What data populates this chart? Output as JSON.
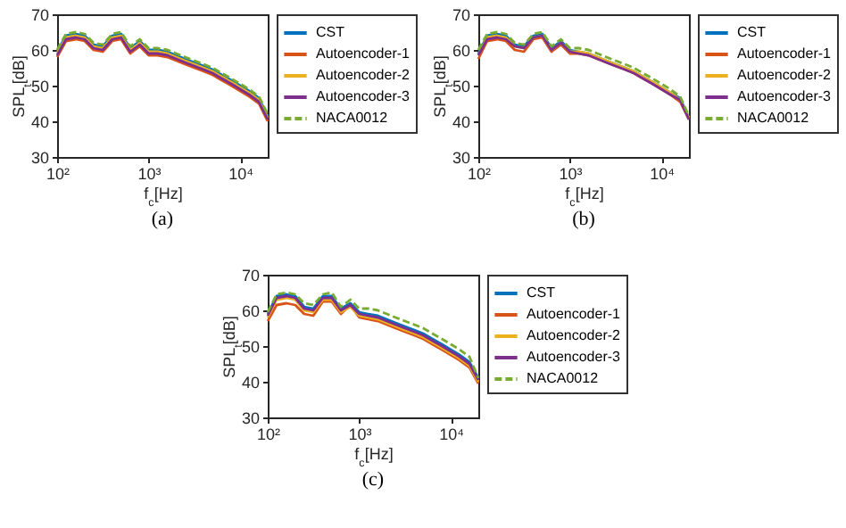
{
  "chart_data": [
    {
      "type": "line",
      "title": "(a)",
      "xlabel": "f$_{c}$[Hz]",
      "ylabel": "SPL$_{t}$[dB]",
      "log": "x",
      "legend": "right",
      "x": [
        100,
        125,
        160,
        200,
        250,
        315,
        400,
        500,
        630,
        800,
        1000,
        1250,
        1600,
        2000,
        2500,
        3150,
        4000,
        5000,
        6300,
        8000,
        10000,
        12500,
        16000,
        20000
      ],
      "xlim": [
        100,
        20000
      ],
      "xticks": [
        {
          "value": 100,
          "label": "10²"
        },
        {
          "value": 1000,
          "label": "10³"
        },
        {
          "value": 10000,
          "label": "10⁴"
        }
      ],
      "ylim": [
        30,
        70
      ],
      "yticks": [
        30,
        40,
        50,
        60,
        70
      ],
      "series": [
        {
          "name": "CST",
          "color": "#0072bd",
          "line_style": "solid",
          "values": [
            59.5,
            64,
            64.5,
            64,
            61.5,
            61,
            64,
            64.5,
            60.5,
            62.5,
            60,
            60,
            59.5,
            58.5,
            57.5,
            56.5,
            55.5,
            54.5,
            53,
            51.5,
            50,
            48.5,
            46.5,
            41.5
          ]
        },
        {
          "name": "Autoencoder-1",
          "color": "#d95319",
          "line_style": "solid",
          "values": [
            58,
            62.5,
            63,
            62.5,
            60,
            59.5,
            62.5,
            63,
            59,
            61,
            58.5,
            58.5,
            58,
            57,
            56,
            55,
            54,
            53,
            51.5,
            50,
            48.5,
            47,
            45,
            40
          ]
        },
        {
          "name": "Autoencoder-2",
          "color": "#edb120",
          "line_style": "solid",
          "values": [
            59,
            63.5,
            64,
            63.5,
            61,
            60.5,
            63.5,
            64,
            60,
            62,
            59.5,
            59.5,
            59,
            58,
            57,
            56,
            55,
            54,
            52.5,
            51,
            49.5,
            48,
            46,
            41
          ]
        },
        {
          "name": "Autoencoder-3",
          "color": "#7e2f8e",
          "line_style": "solid",
          "values": [
            58.5,
            63,
            63.5,
            63,
            60.5,
            60,
            63,
            63.5,
            59.5,
            61.5,
            59,
            59,
            58.5,
            57.5,
            56.5,
            55.5,
            54.5,
            53.5,
            52,
            50.5,
            49,
            47.5,
            45.5,
            40.5
          ]
        },
        {
          "name": "NACA0012",
          "color": "#77ac30",
          "line_style": "dashed",
          "values": [
            60,
            64.5,
            65,
            64.5,
            62,
            61.5,
            64.5,
            65,
            61,
            63,
            60.5,
            60.5,
            60,
            59,
            58,
            57,
            56,
            55,
            53.5,
            52,
            50.5,
            49,
            47,
            42
          ]
        }
      ]
    },
    {
      "type": "line",
      "title": "(b)",
      "xlabel": "f$_{c}$[Hz]",
      "ylabel": "SPL$_{t}$[dB]",
      "log": "x",
      "legend": "right",
      "x": [
        100,
        125,
        160,
        200,
        250,
        315,
        400,
        500,
        630,
        800,
        1000,
        1250,
        1600,
        2000,
        2500,
        3150,
        4000,
        5000,
        6300,
        8000,
        10000,
        12500,
        16000,
        20000
      ],
      "xlim": [
        100,
        20000
      ],
      "xticks": [
        {
          "value": 100,
          "label": "10²"
        },
        {
          "value": 1000,
          "label": "10³"
        },
        {
          "value": 10000,
          "label": "10⁴"
        }
      ],
      "ylim": [
        30,
        70
      ],
      "yticks": [
        30,
        40,
        50,
        60,
        70
      ],
      "series": [
        {
          "name": "CST",
          "color": "#0072bd",
          "line_style": "solid",
          "values": [
            59,
            64,
            64.5,
            64,
            61.5,
            61,
            64,
            64.5,
            60.5,
            62.5,
            60,
            59.5,
            59,
            58,
            57,
            56,
            55,
            54,
            52.5,
            51,
            49.5,
            48,
            46.5,
            41
          ]
        },
        {
          "name": "Autoencoder-1",
          "color": "#d95319",
          "line_style": "solid",
          "values": [
            57.5,
            62.5,
            63,
            62.5,
            60,
            59.5,
            63,
            63.5,
            59.5,
            61.5,
            59,
            59,
            58.5,
            57.5,
            56.5,
            55.5,
            54.5,
            53.5,
            52,
            50.5,
            49,
            47.5,
            45.5,
            40.5
          ]
        },
        {
          "name": "Autoencoder-2",
          "color": "#edb120",
          "line_style": "solid",
          "values": [
            58.5,
            63.5,
            64,
            63.5,
            61,
            60.5,
            63.5,
            64,
            60,
            62,
            59.5,
            59.5,
            59,
            58,
            57,
            56,
            55,
            54,
            52.5,
            51,
            49.5,
            48,
            46,
            41
          ]
        },
        {
          "name": "Autoencoder-3",
          "color": "#7e2f8e",
          "line_style": "solid",
          "values": [
            58.5,
            63,
            63.5,
            63,
            61,
            60.5,
            63.5,
            64,
            60,
            62,
            59.5,
            59,
            58.5,
            57.5,
            56.5,
            55.5,
            54.5,
            53.5,
            52,
            50.5,
            49,
            47.5,
            46,
            40.5
          ]
        },
        {
          "name": "NACA0012",
          "color": "#77ac30",
          "line_style": "dashed",
          "values": [
            60,
            64.5,
            65,
            64.5,
            62,
            61.5,
            64.5,
            65,
            61,
            63,
            60.5,
            60.5,
            60,
            59,
            58,
            57,
            56,
            55,
            53.5,
            52,
            50.5,
            49,
            47,
            41.5
          ]
        }
      ]
    },
    {
      "type": "line",
      "title": "(c)",
      "xlabel": "f$_{c}$[Hz]",
      "ylabel": "SPL$_{t}$[dB]",
      "log": "x",
      "legend": "right",
      "x": [
        100,
        125,
        160,
        200,
        250,
        315,
        400,
        500,
        630,
        800,
        1000,
        1250,
        1600,
        2000,
        2500,
        3150,
        4000,
        5000,
        6300,
        8000,
        10000,
        12500,
        16000,
        20000
      ],
      "xlim": [
        100,
        20000
      ],
      "xticks": [
        {
          "value": 100,
          "label": "10²"
        },
        {
          "value": 1000,
          "label": "10³"
        },
        {
          "value": 10000,
          "label": "10⁴"
        }
      ],
      "ylim": [
        30,
        70
      ],
      "yticks": [
        30,
        40,
        50,
        60,
        70
      ],
      "series": [
        {
          "name": "CST",
          "color": "#0072bd",
          "line_style": "solid",
          "values": [
            59,
            64,
            64.5,
            64,
            61,
            60.5,
            64,
            64,
            60.5,
            62,
            59.5,
            59,
            58.5,
            57.5,
            56.5,
            55.5,
            54.5,
            53.5,
            52,
            50.5,
            49,
            47.5,
            45.5,
            41
          ]
        },
        {
          "name": "Autoencoder-1",
          "color": "#d95319",
          "line_style": "solid",
          "values": [
            57,
            61.5,
            62,
            61.5,
            59,
            58.5,
            62.5,
            62.5,
            59,
            61.5,
            58,
            57.5,
            57,
            56,
            55,
            54,
            53,
            52,
            50.5,
            49,
            47.5,
            46,
            44,
            39.5
          ]
        },
        {
          "name": "Autoencoder-2",
          "color": "#edb120",
          "line_style": "solid",
          "values": [
            58,
            63,
            63.5,
            63,
            60,
            59.5,
            63,
            63,
            59.5,
            61,
            58.5,
            58,
            57.5,
            56.5,
            55.5,
            54.5,
            53.5,
            52.5,
            51,
            49.5,
            48,
            46.5,
            44.5,
            40
          ]
        },
        {
          "name": "Autoencoder-3",
          "color": "#7e2f8e",
          "line_style": "solid",
          "values": [
            58.5,
            63.5,
            64,
            63.5,
            60.5,
            60,
            63.5,
            63.5,
            60,
            61.5,
            59,
            58.5,
            58,
            57,
            56,
            55,
            54,
            53,
            51.5,
            50,
            48.5,
            47,
            45,
            40.5
          ]
        },
        {
          "name": "NACA0012",
          "color": "#77ac30",
          "line_style": "dashed",
          "values": [
            59.5,
            64.5,
            65,
            64.5,
            62,
            61.5,
            64.5,
            65,
            61,
            63,
            60.5,
            60.5,
            60,
            59,
            58,
            57,
            56,
            55,
            53.5,
            52,
            50.5,
            49,
            47,
            41
          ]
        }
      ]
    }
  ]
}
